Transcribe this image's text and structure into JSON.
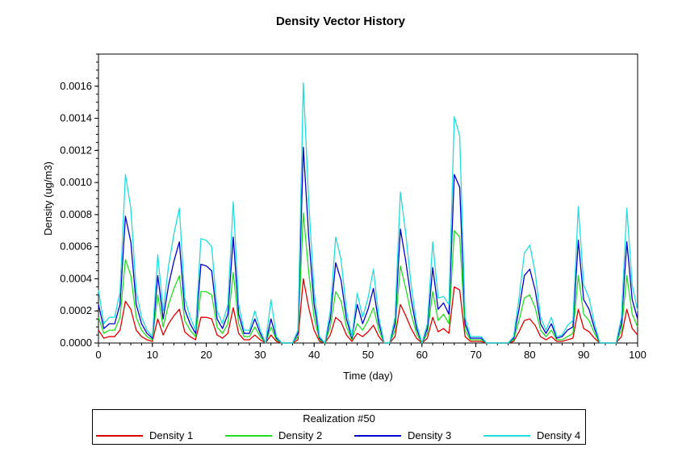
{
  "chart_data": {
    "type": "line",
    "title": "Density Vector History",
    "xlabel": "Time (day)",
    "ylabel": "Density (ug/m3)",
    "xlim": [
      0,
      100
    ],
    "ylim": [
      0,
      0.0018
    ],
    "xticks": [
      0,
      10,
      20,
      30,
      40,
      50,
      60,
      70,
      80,
      90,
      100
    ],
    "xtick_labels": [
      "0",
      "10",
      "20",
      "30",
      "40",
      "50",
      "60",
      "70",
      "80",
      "90",
      "100"
    ],
    "yticks": [
      0,
      0.0002,
      0.0004,
      0.0006,
      0.0008,
      0.001,
      0.0012,
      0.0014,
      0.0016
    ],
    "ytick_labels": [
      "0.0000",
      "0.0002",
      "0.0004",
      "0.0006",
      "0.0008",
      "0.0010",
      "0.0012",
      "0.0014",
      "0.0016"
    ],
    "grid": false,
    "legend": {
      "title": "Realization #50",
      "placement": "bottom"
    },
    "x": [
      0,
      1,
      2,
      3,
      4,
      5,
      6,
      7,
      8,
      9,
      10,
      11,
      12,
      13,
      14,
      15,
      16,
      17,
      18,
      19,
      20,
      21,
      22,
      23,
      24,
      25,
      26,
      27,
      28,
      29,
      30,
      31,
      32,
      33,
      34,
      35,
      36,
      37,
      38,
      39,
      40,
      41,
      42,
      43,
      44,
      45,
      46,
      47,
      48,
      49,
      50,
      51,
      52,
      53,
      54,
      55,
      56,
      57,
      58,
      59,
      60,
      61,
      62,
      63,
      64,
      65,
      66,
      67,
      68,
      69,
      70,
      71,
      72,
      73,
      74,
      75,
      76,
      77,
      78,
      79,
      80,
      81,
      82,
      83,
      84,
      85,
      86,
      87,
      88,
      89,
      90,
      91,
      92,
      93,
      94,
      95,
      96,
      97,
      98,
      99,
      100
    ],
    "series": [
      {
        "name": "Density 1",
        "color": "#dd0000",
        "values": [
          8e-05,
          3e-05,
          4e-05,
          4e-05,
          8e-05,
          0.00026,
          0.00021,
          8e-05,
          4e-05,
          2e-05,
          1e-05,
          0.00015,
          5e-05,
          0.00012,
          0.00017,
          0.00021,
          7e-05,
          4e-05,
          2e-05,
          0.00016,
          0.00016,
          0.00015,
          5e-05,
          3e-05,
          6e-05,
          0.00022,
          6e-05,
          2e-05,
          2e-05,
          5e-05,
          2e-05,
          0.0,
          5e-05,
          1e-05,
          0.0,
          0.0,
          0.0,
          2e-05,
          0.0004,
          0.00022,
          8e-05,
          1e-05,
          0.0,
          5e-05,
          0.00016,
          0.00013,
          5e-05,
          1e-05,
          6e-05,
          4e-05,
          7e-05,
          0.00011,
          4e-05,
          0.0,
          0.0,
          4e-05,
          0.00024,
          0.00017,
          9e-05,
          3e-05,
          0.0,
          3e-05,
          0.00016,
          7e-05,
          9e-05,
          6e-05,
          0.00035,
          0.00033,
          4e-05,
          1e-05,
          1e-05,
          1e-05,
          0.0,
          0.0,
          0.0,
          0.0,
          0.0,
          1e-05,
          7e-05,
          0.00014,
          0.00015,
          0.00011,
          4e-05,
          2e-05,
          4e-05,
          1e-05,
          1e-05,
          2e-05,
          3e-05,
          0.00021,
          9e-05,
          7e-05,
          3e-05,
          0.0,
          0.0,
          0.0,
          0.0,
          4e-05,
          0.00021,
          9e-05,
          5e-05
        ]
      },
      {
        "name": "Density 2",
        "color": "#22dd22",
        "values": [
          0.00016,
          6e-05,
          8e-05,
          8e-05,
          0.00016,
          0.00052,
          0.00042,
          0.00016,
          8e-05,
          4e-05,
          2e-05,
          0.0003,
          0.0001,
          0.00024,
          0.00034,
          0.00042,
          0.00014,
          8e-05,
          4e-05,
          0.00032,
          0.00032,
          0.0003,
          0.0001,
          6e-05,
          0.00012,
          0.00044,
          0.00012,
          4e-05,
          4e-05,
          0.0001,
          4e-05,
          0.0,
          0.0001,
          2e-05,
          0.0,
          0.0,
          0.0,
          4e-05,
          0.00081,
          0.00044,
          0.00016,
          2e-05,
          0.0,
          0.0001,
          0.00032,
          0.00026,
          0.0001,
          2e-05,
          0.00012,
          8e-05,
          0.00014,
          0.00022,
          8e-05,
          0.0,
          0.0,
          8e-05,
          0.00048,
          0.00034,
          0.00018,
          6e-05,
          0.0,
          6e-05,
          0.00032,
          0.00014,
          0.00018,
          0.00012,
          0.0007,
          0.00066,
          8e-05,
          2e-05,
          2e-05,
          2e-05,
          0.0,
          0.0,
          0.0,
          0.0,
          0.0,
          2e-05,
          0.00014,
          0.00028,
          0.0003,
          0.00022,
          8e-05,
          4e-05,
          8e-05,
          2e-05,
          2e-05,
          4e-05,
          6e-05,
          0.00042,
          0.00018,
          0.00014,
          6e-05,
          0.0,
          0.0,
          0.0,
          0.0,
          8e-05,
          0.00042,
          0.00018,
          0.0001
        ]
      },
      {
        "name": "Density 3",
        "color": "#0000cc",
        "values": [
          0.00024,
          9e-05,
          0.00012,
          0.00012,
          0.00024,
          0.00079,
          0.00063,
          0.00024,
          0.00012,
          6e-05,
          3e-05,
          0.00042,
          0.00015,
          0.00036,
          0.00051,
          0.00063,
          0.00021,
          0.00012,
          6e-05,
          0.00049,
          0.00048,
          0.00045,
          0.00015,
          9e-05,
          0.00018,
          0.00066,
          0.00018,
          6e-05,
          6e-05,
          0.00015,
          6e-05,
          0.0,
          0.00015,
          3e-05,
          0.0,
          0.0,
          0.0,
          6e-05,
          0.00122,
          0.00066,
          0.00024,
          3e-05,
          0.0,
          0.00015,
          0.0005,
          0.00039,
          0.00015,
          3e-05,
          0.00024,
          0.00012,
          0.00021,
          0.00034,
          0.00012,
          0.0,
          0.0,
          0.00012,
          0.00071,
          0.00051,
          0.00027,
          9e-05,
          0.0,
          9e-05,
          0.00047,
          0.00021,
          0.00025,
          0.00018,
          0.00105,
          0.00097,
          0.00012,
          3e-05,
          3e-05,
          3e-05,
          0.0,
          0.0,
          0.0,
          0.0,
          0.0,
          3e-05,
          0.00021,
          0.00042,
          0.00046,
          0.00033,
          0.00012,
          6e-05,
          0.00012,
          3e-05,
          4e-05,
          8e-05,
          0.0001,
          0.00064,
          0.00027,
          0.00021,
          9e-05,
          0.0,
          0.0,
          0.0,
          0.0,
          0.00012,
          0.00063,
          0.00027,
          0.00015
        ]
      },
      {
        "name": "Density 4",
        "color": "#22dddd",
        "values": [
          0.00033,
          0.00012,
          0.00016,
          0.00016,
          0.00032,
          0.00105,
          0.00084,
          0.00032,
          0.00016,
          8e-05,
          4e-05,
          0.00055,
          0.0002,
          0.00048,
          0.00068,
          0.00084,
          0.00028,
          0.00016,
          8e-05,
          0.00065,
          0.00064,
          0.0006,
          0.0002,
          0.00012,
          0.00024,
          0.00088,
          0.00024,
          8e-05,
          8e-05,
          0.0002,
          8e-05,
          0.0,
          0.00027,
          4e-05,
          0.0,
          0.0,
          0.0,
          8e-05,
          0.00162,
          0.00088,
          0.00032,
          4e-05,
          0.0,
          0.0002,
          0.00066,
          0.00052,
          0.0002,
          4e-05,
          0.00031,
          0.00016,
          0.00028,
          0.00046,
          0.00016,
          0.0,
          0.0,
          0.00016,
          0.00094,
          0.00068,
          0.00036,
          0.00012,
          0.0,
          0.00012,
          0.00063,
          0.00028,
          0.00029,
          0.00024,
          0.00141,
          0.00129,
          0.00016,
          4e-05,
          4e-05,
          4e-05,
          0.0,
          0.0,
          0.0,
          0.0,
          0.0,
          4e-05,
          0.00028,
          0.00056,
          0.00061,
          0.00044,
          0.00016,
          8e-05,
          0.00016,
          4e-05,
          5e-05,
          0.00011,
          0.00014,
          0.00085,
          0.00036,
          0.00028,
          0.00012,
          0.0,
          0.0,
          0.0,
          0.0,
          0.00016,
          0.00084,
          0.00036,
          0.0002
        ]
      }
    ]
  }
}
